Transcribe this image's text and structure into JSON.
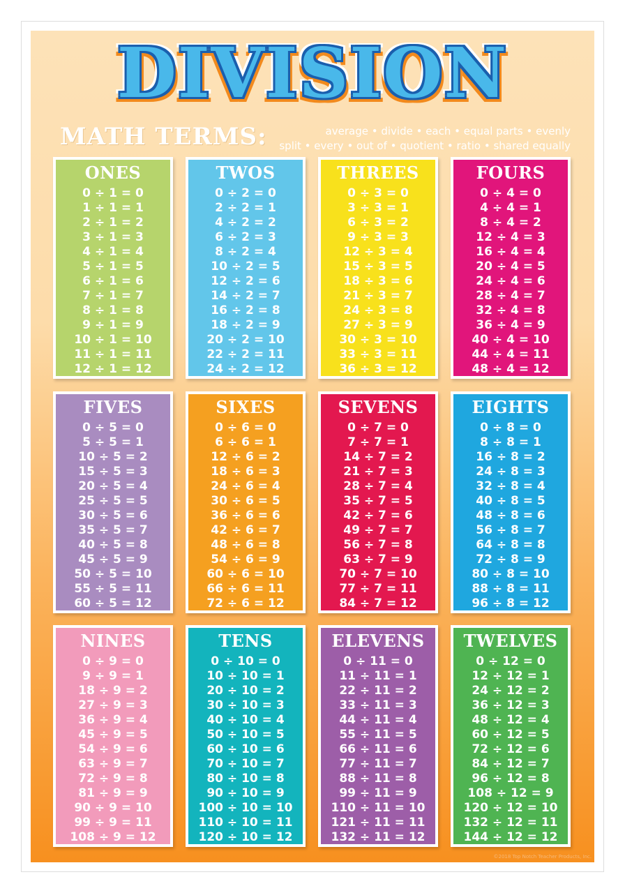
{
  "title": "DIVISION",
  "math_terms": {
    "label": "MATH TERMS:",
    "line1": "average • divide • each • equal parts • evenly",
    "line2": "split • every • out of • quotient • ratio • shared equally"
  },
  "copyright": "©2018 Top Notch Teacher Products, Inc.",
  "cards": [
    {
      "name": "ONES",
      "color": "#b6d46c",
      "equations": [
        "0 ÷ 1 = 0",
        "1 ÷ 1 = 1",
        "2 ÷ 1 = 2",
        "3 ÷ 1 = 3",
        "4 ÷ 1 = 4",
        "5 ÷ 1 = 5",
        "6 ÷ 1 = 6",
        "7 ÷ 1 = 7",
        "8 ÷ 1 = 8",
        "9 ÷ 1 = 9",
        "10 ÷ 1 = 10",
        "11 ÷ 1 = 11",
        "12 ÷ 1 = 12"
      ]
    },
    {
      "name": "TWOS",
      "color": "#62c6ea",
      "equations": [
        "0 ÷ 2 = 0",
        "2 ÷ 2 = 1",
        "4 ÷ 2 = 2",
        "6 ÷ 2 = 3",
        "8 ÷ 2 = 4",
        "10 ÷ 2 = 5",
        "12 ÷ 2 = 6",
        "14 ÷ 2 = 7",
        "16 ÷ 2 = 8",
        "18 ÷ 2 = 9",
        "20 ÷ 2 = 10",
        "22 ÷ 2 = 11",
        "24 ÷ 2 = 12"
      ]
    },
    {
      "name": "THREES",
      "color": "#f8e11c",
      "equations": [
        "0 ÷ 3 = 0",
        "3 ÷ 3 = 1",
        "6 ÷ 3 = 2",
        "9 ÷ 3 = 3",
        "12 ÷ 3 = 4",
        "15 ÷ 3 = 5",
        "18 ÷ 3 = 6",
        "21 ÷ 3 = 7",
        "24 ÷ 3 = 8",
        "27 ÷ 3 = 9",
        "30 ÷ 3 = 10",
        "33 ÷ 3 = 11",
        "36 ÷ 3 = 12"
      ]
    },
    {
      "name": "FOURS",
      "color": "#e1157b",
      "equations": [
        "0 ÷ 4 = 0",
        "4 ÷ 4 = 1",
        "8 ÷ 4 = 2",
        "12 ÷ 4 = 3",
        "16 ÷ 4 = 4",
        "20 ÷ 4 = 5",
        "24 ÷ 4 = 6",
        "28 ÷ 4 = 7",
        "32 ÷ 4 = 8",
        "36 ÷ 4 = 9",
        "40 ÷ 4 = 10",
        "44 ÷ 4 = 11",
        "48 ÷ 4 = 12"
      ]
    },
    {
      "name": "FIVES",
      "color": "#a98cc0",
      "equations": [
        "0 ÷ 5 = 0",
        "5 ÷ 5 = 1",
        "10 ÷ 5 = 2",
        "15 ÷ 5 = 3",
        "20 ÷ 5 = 4",
        "25 ÷ 5 = 5",
        "30 ÷ 5 = 6",
        "35 ÷ 5 = 7",
        "40 ÷ 5 = 8",
        "45 ÷ 5 = 9",
        "50 ÷ 5 = 10",
        "55 ÷ 5 = 11",
        "60 ÷ 5 = 12"
      ]
    },
    {
      "name": "SIXES",
      "color": "#f5a020",
      "equations": [
        "0 ÷ 6 = 0",
        "6 ÷ 6 = 1",
        "12 ÷ 6 = 2",
        "18 ÷ 6 = 3",
        "24 ÷ 6 = 4",
        "30 ÷ 6 = 5",
        "36 ÷ 6 = 6",
        "42 ÷ 6 = 7",
        "48 ÷ 6 = 8",
        "54 ÷ 6 = 9",
        "60 ÷ 6 = 10",
        "66 ÷ 6 = 11",
        "72 ÷ 6 = 12"
      ]
    },
    {
      "name": "SEVENS",
      "color": "#e3184f",
      "equations": [
        "0 ÷ 7 = 0",
        "7 ÷ 7 = 1",
        "14 ÷ 7 = 2",
        "21 ÷ 7 = 3",
        "28 ÷ 7 = 4",
        "35 ÷ 7 = 5",
        "42 ÷ 7 = 6",
        "49 ÷ 7 = 7",
        "56 ÷ 7 = 8",
        "63 ÷ 7 = 9",
        "70 ÷ 7 = 10",
        "77 ÷ 7 = 11",
        "84 ÷ 7 = 12"
      ]
    },
    {
      "name": "EIGHTS",
      "color": "#1fa7df",
      "equations": [
        "0 ÷ 8 = 0",
        "8 ÷ 8 = 1",
        "16 ÷ 8 = 2",
        "24 ÷ 8 = 3",
        "32 ÷ 8 = 4",
        "40 ÷ 8 = 5",
        "48 ÷ 8 = 6",
        "56 ÷ 8 = 7",
        "64 ÷ 8 = 8",
        "72 ÷ 8 = 9",
        "80 ÷ 8 = 10",
        "88 ÷ 8 = 11",
        "96 ÷ 8 = 12"
      ]
    },
    {
      "name": "NINES",
      "color": "#f29bbb",
      "equations": [
        "0 ÷ 9 = 0",
        "9 ÷ 9 = 1",
        "18 ÷ 9 = 2",
        "27 ÷ 9 = 3",
        "36 ÷ 9 = 4",
        "45 ÷ 9 = 5",
        "54 ÷ 9 = 6",
        "63 ÷ 9 = 7",
        "72 ÷ 9 = 8",
        "81 ÷ 9 = 9",
        "90 ÷ 9 = 10",
        "99 ÷ 9 = 11",
        "108 ÷ 9 = 12"
      ]
    },
    {
      "name": "TENS",
      "color": "#13b4bd",
      "equations": [
        "0 ÷ 10 = 0",
        "10 ÷ 10 = 1",
        "20 ÷ 10 = 2",
        "30 ÷ 10 = 3",
        "40 ÷ 10 = 4",
        "50 ÷ 10 = 5",
        "60 ÷ 10 = 6",
        "70 ÷ 10 = 7",
        "80 ÷ 10 = 8",
        "90 ÷ 10 = 9",
        "100 ÷ 10 = 10",
        "110 ÷ 10 = 11",
        "120 ÷ 10 = 12"
      ]
    },
    {
      "name": "ELEVENS",
      "color": "#9d5ea8",
      "equations": [
        "0 ÷ 11 = 0",
        "11 ÷ 11 = 1",
        "22 ÷ 11 = 2",
        "33 ÷ 11 = 3",
        "44 ÷ 11 = 4",
        "55 ÷ 11 = 5",
        "66 ÷ 11 = 6",
        "77 ÷ 11 = 7",
        "88 ÷ 11 = 8",
        "99 ÷ 11 = 9",
        "110 ÷ 11 = 10",
        "121 ÷ 11 = 11",
        "132 ÷ 11 = 12"
      ]
    },
    {
      "name": "TWELVES",
      "color": "#4fb452",
      "equations": [
        "0 ÷ 12 = 0",
        "12 ÷ 12 = 1",
        "24 ÷ 12 = 2",
        "36 ÷ 12 = 3",
        "48 ÷ 12 = 4",
        "60 ÷ 12 = 5",
        "72 ÷ 12 = 6",
        "84 ÷ 12 = 7",
        "96 ÷ 12 = 8",
        "108 ÷ 12 = 9",
        "120 ÷ 12 = 10",
        "132 ÷ 12 = 11",
        "144 ÷ 12 = 12"
      ]
    }
  ]
}
